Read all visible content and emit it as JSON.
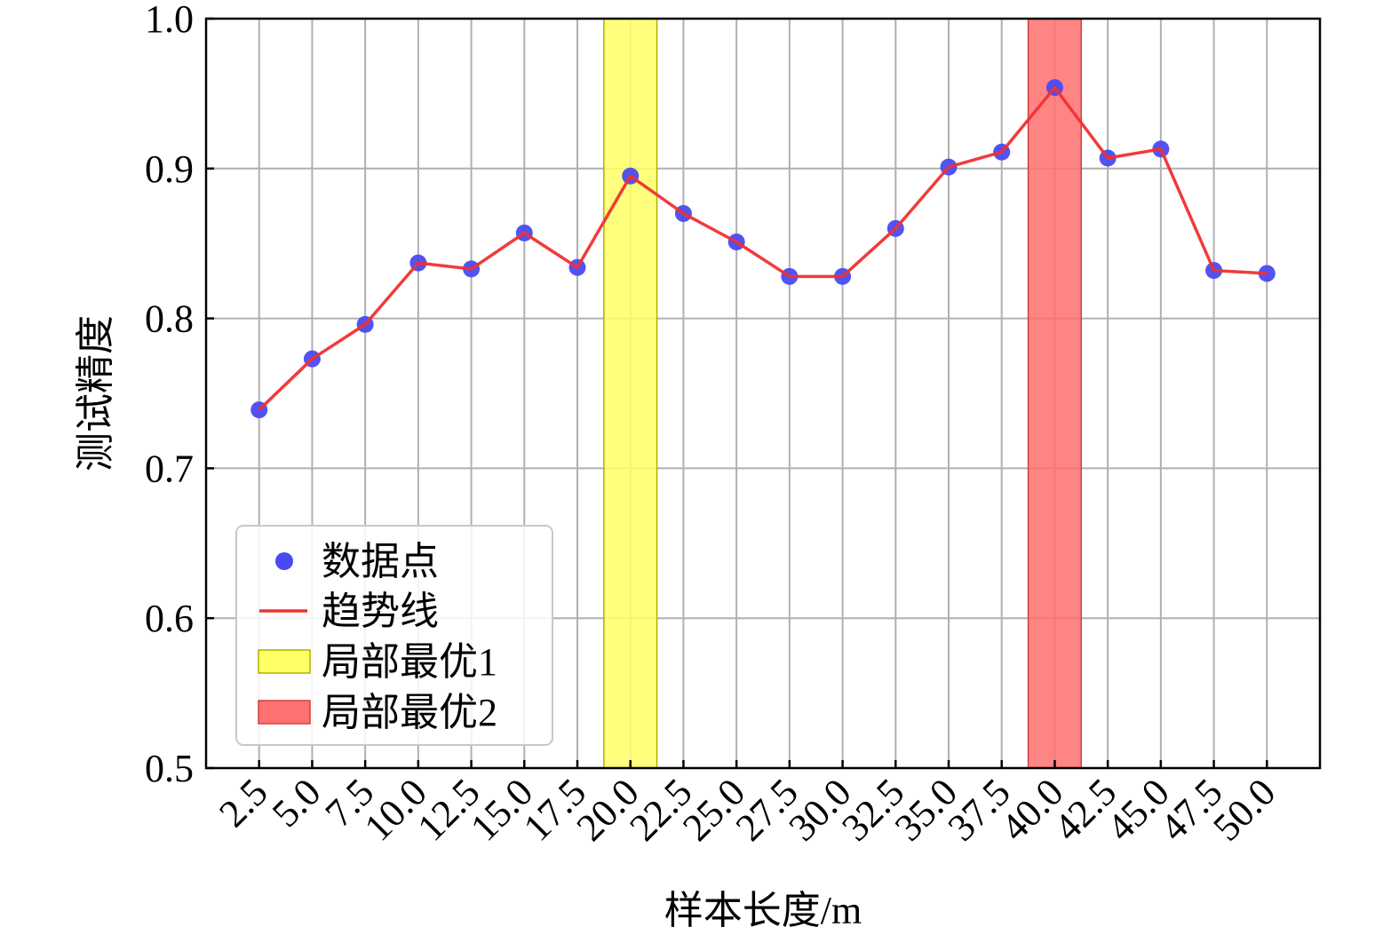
{
  "chart_data": {
    "type": "line",
    "title": "",
    "xlabel": "样本长度/m",
    "ylabel": "测试精度",
    "x": [
      2.5,
      5.0,
      7.5,
      10.0,
      12.5,
      15.0,
      17.5,
      20.0,
      22.5,
      25.0,
      27.5,
      30.0,
      32.5,
      35.0,
      37.5,
      40.0,
      42.5,
      45.0,
      47.5,
      50.0
    ],
    "x_tick_labels": [
      "2.5",
      "5.0",
      "7.5",
      "10.0",
      "12.5",
      "15.0",
      "17.5",
      "20.0",
      "22.5",
      "25.0",
      "27.5",
      "30.0",
      "32.5",
      "35.0",
      "37.5",
      "40.0",
      "42.5",
      "45.0",
      "47.5",
      "50.0"
    ],
    "y_ticks": [
      0.5,
      0.6,
      0.7,
      0.8,
      0.9,
      1.0
    ],
    "y_tick_labels": [
      "0.5",
      "0.6",
      "0.7",
      "0.8",
      "0.9",
      "1.0"
    ],
    "ylim": [
      0.5,
      1.0
    ],
    "xlim": [
      0.0,
      52.5
    ],
    "series": [
      {
        "name": "数据点",
        "kind": "scatter",
        "color": "#4a4af0",
        "values": [
          0.739,
          0.773,
          0.796,
          0.837,
          0.833,
          0.857,
          0.834,
          0.895,
          0.87,
          0.851,
          0.828,
          0.828,
          0.86,
          0.901,
          0.911,
          0.954,
          0.907,
          0.913,
          0.832,
          0.83
        ]
      },
      {
        "name": "趋势线",
        "kind": "line",
        "color": "#f03030",
        "values": [
          0.739,
          0.773,
          0.796,
          0.837,
          0.833,
          0.857,
          0.834,
          0.895,
          0.87,
          0.851,
          0.828,
          0.828,
          0.86,
          0.901,
          0.911,
          0.954,
          0.907,
          0.913,
          0.832,
          0.83
        ]
      }
    ],
    "highlight_bands": [
      {
        "name": "局部最优1",
        "x_range": [
          18.75,
          21.25
        ],
        "color": "#ffff66",
        "edge": "#b0b000"
      },
      {
        "name": "局部最优2",
        "x_range": [
          38.75,
          41.25
        ],
        "color": "#ff7070",
        "edge": "#d04040"
      }
    ],
    "grid": true,
    "legend_position": "lower-left"
  }
}
